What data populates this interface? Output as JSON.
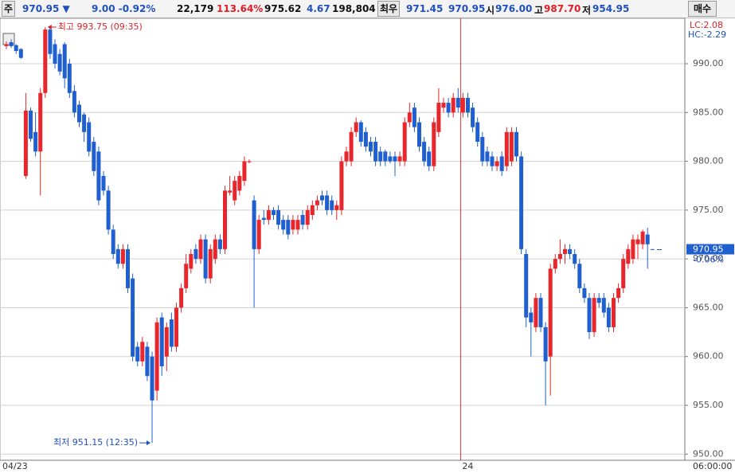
{
  "toolbar": {
    "code_tag": "주",
    "price": "970.95 ▼",
    "change": "9.00 -0.92%",
    "volume": "22,179",
    "volume_ratio": "113.64%",
    "ref_price": "975.62",
    "ref_change": "4.67",
    "amount": "198,804",
    "best_tag": "최우",
    "best_ask": "971.45",
    "best_bid": "970.95",
    "open_tag": "시",
    "open": "976.00",
    "high_tag": "고",
    "high": "987.70",
    "low_tag": "저",
    "low": "954.95",
    "buy_button": "매수"
  },
  "chart_data": {
    "type": "candlestick",
    "up_color": "#e8262b",
    "down_color": "#1f5fcf",
    "grid": true,
    "ylim": [
      949.5,
      994.7
    ],
    "yticks": [
      {
        "value": 950,
        "label": "950.00"
      },
      {
        "value": 955,
        "label": "955.00"
      },
      {
        "value": 960,
        "label": "960.00"
      },
      {
        "value": 965,
        "label": "965.00"
      },
      {
        "value": 970,
        "label": "970.00"
      },
      {
        "value": 975,
        "label": "975.00"
      },
      {
        "value": 980,
        "label": "980.00"
      },
      {
        "value": 985,
        "label": "985.00"
      },
      {
        "value": 990,
        "label": "990.00"
      }
    ],
    "categories": [
      "04/23",
      null,
      null,
      null,
      null,
      null,
      null,
      null,
      null,
      null,
      null,
      null,
      null,
      null,
      null,
      null,
      null,
      null,
      null,
      null,
      null,
      null,
      null,
      null,
      null,
      null,
      null,
      null,
      null,
      null,
      null,
      null,
      null,
      null,
      null,
      null,
      null,
      null,
      null,
      null,
      null,
      null,
      null,
      null,
      null,
      null,
      null,
      null,
      null,
      null,
      null,
      null,
      null,
      null,
      null,
      null,
      null,
      null,
      null,
      null,
      null,
      null,
      null,
      null,
      null,
      null,
      null,
      null,
      null,
      null,
      null,
      null,
      null,
      null,
      null,
      null,
      null,
      null,
      null,
      null,
      null,
      null,
      null,
      null,
      null,
      null,
      null,
      null,
      null,
      null,
      null,
      null,
      null,
      null,
      "24",
      null,
      null,
      null,
      null,
      null,
      null,
      null,
      null,
      null,
      null,
      null,
      null,
      null,
      null,
      null,
      null,
      null,
      null,
      null,
      null,
      null,
      null,
      null,
      null,
      null,
      null,
      null,
      null,
      null,
      null,
      null,
      null,
      null,
      null,
      null,
      null,
      null,
      null,
      null
    ],
    "x_end_label": "06:00:00",
    "ohlc": [
      [
        991.8,
        992.3,
        991.5,
        992.0
      ],
      [
        992.2,
        992.5,
        991.6,
        991.8
      ],
      [
        991.9,
        992.0,
        991.0,
        991.3
      ],
      [
        991.5,
        991.6,
        990.5,
        990.6
      ],
      [
        978.5,
        987.0,
        978.2,
        985.2
      ],
      [
        985.2,
        985.5,
        982.0,
        982.3
      ],
      [
        983.0,
        985.0,
        980.5,
        981.0
      ],
      [
        981.0,
        987.5,
        976.5,
        987.0
      ],
      [
        987.0,
        993.75,
        986.5,
        993.5
      ],
      [
        993.5,
        993.7,
        990.5,
        991.0
      ],
      [
        992.0,
        992.5,
        989.5,
        990.0
      ],
      [
        991.0,
        991.5,
        988.8,
        989.2
      ],
      [
        992.0,
        992.2,
        987.5,
        988.5
      ],
      [
        990.0,
        990.5,
        986.5,
        987.0
      ],
      [
        987.2,
        987.8,
        984.5,
        985.0
      ],
      [
        985.8,
        986.2,
        983.5,
        984.0
      ],
      [
        984.8,
        985.0,
        982.0,
        983.0
      ],
      [
        984.0,
        984.5,
        980.5,
        981.0
      ],
      [
        982.0,
        982.5,
        978.5,
        979.0
      ],
      [
        981.0,
        981.5,
        975.5,
        976.0
      ],
      [
        978.5,
        979.0,
        976.5,
        977.0
      ],
      [
        977.0,
        977.5,
        972.5,
        973.0
      ],
      [
        973.0,
        973.5,
        970.0,
        970.5
      ],
      [
        971.0,
        971.5,
        969.0,
        969.5
      ],
      [
        969.5,
        971.5,
        969.0,
        971.0
      ],
      [
        971.0,
        971.5,
        966.5,
        967.0
      ],
      [
        968.0,
        968.5,
        959.5,
        960.0
      ],
      [
        961.0,
        961.5,
        959.0,
        959.5
      ],
      [
        959.5,
        962.0,
        959.0,
        961.5
      ],
      [
        961.0,
        961.5,
        957.5,
        958.0
      ],
      [
        960.0,
        960.5,
        951.15,
        955.5
      ],
      [
        956.5,
        964.0,
        955.5,
        963.5
      ],
      [
        964.0,
        964.5,
        958.0,
        959.0
      ],
      [
        960.0,
        963.5,
        958.5,
        963.0
      ],
      [
        963.8,
        964.5,
        960.5,
        961.0
      ],
      [
        961.0,
        965.5,
        960.5,
        965.0
      ],
      [
        965.0,
        967.5,
        964.5,
        967.0
      ],
      [
        967.0,
        970.5,
        966.5,
        969.5
      ],
      [
        969.0,
        971.0,
        968.5,
        970.5
      ],
      [
        971.0,
        971.5,
        969.5,
        970.0
      ],
      [
        970.0,
        972.5,
        969.5,
        972.0
      ],
      [
        972.0,
        972.5,
        967.5,
        968.0
      ],
      [
        968.0,
        971.5,
        967.5,
        971.0
      ],
      [
        970.0,
        972.5,
        969.5,
        972.0
      ],
      [
        972.0,
        972.5,
        970.5,
        971.0
      ],
      [
        971.0,
        977.5,
        970.5,
        977.0
      ],
      [
        976.8,
        978.5,
        976.5,
        977.0
      ],
      [
        976.0,
        978.5,
        975.5,
        978.0
      ],
      [
        977.0,
        979.0,
        976.5,
        978.5
      ],
      [
        978.0,
        980.5,
        977.5,
        980.0
      ],
      [
        980.0,
        980.2,
        979.8,
        980.0
      ],
      [
        976.0,
        976.5,
        965.0,
        971.0
      ],
      [
        971.0,
        974.5,
        970.5,
        974.0
      ],
      [
        974.2,
        975.0,
        973.5,
        974.0
      ],
      [
        974.0,
        975.5,
        973.5,
        975.0
      ],
      [
        975.0,
        975.3,
        974.0,
        974.5
      ],
      [
        975.0,
        975.5,
        973.0,
        973.5
      ],
      [
        974.0,
        974.5,
        972.5,
        973.0
      ],
      [
        974.0,
        974.5,
        972.0,
        972.5
      ],
      [
        973.0,
        974.5,
        972.5,
        974.0
      ],
      [
        973.0,
        974.5,
        972.5,
        974.0
      ],
      [
        974.5,
        975.0,
        973.0,
        973.5
      ],
      [
        973.5,
        975.5,
        973.0,
        975.0
      ],
      [
        974.5,
        976.0,
        974.0,
        975.5
      ],
      [
        975.5,
        976.5,
        975.0,
        976.0
      ],
      [
        976.5,
        977.0,
        975.5,
        976.0
      ],
      [
        976.5,
        977.0,
        974.5,
        975.0
      ],
      [
        976.0,
        976.5,
        974.5,
        975.0
      ],
      [
        975.0,
        976.0,
        974.0,
        975.5
      ],
      [
        975.0,
        980.5,
        974.5,
        980.0
      ],
      [
        980.0,
        981.5,
        979.5,
        981.0
      ],
      [
        980.0,
        983.5,
        979.5,
        983.0
      ],
      [
        983.0,
        984.5,
        982.5,
        984.0
      ],
      [
        984.0,
        984.2,
        981.5,
        982.0
      ],
      [
        983.0,
        983.5,
        981.0,
        981.5
      ],
      [
        982.0,
        982.5,
        980.5,
        981.0
      ],
      [
        982.0,
        982.5,
        979.5,
        980.0
      ],
      [
        981.0,
        981.5,
        979.5,
        980.0
      ],
      [
        981.0,
        981.2,
        979.5,
        980.0
      ],
      [
        980.5,
        981.0,
        979.8,
        980.0
      ],
      [
        980.5,
        981.0,
        978.5,
        980.0
      ],
      [
        980.0,
        981.0,
        979.5,
        980.5
      ],
      [
        980.0,
        984.5,
        979.5,
        984.0
      ],
      [
        984.0,
        986.0,
        983.5,
        985.0
      ],
      [
        985.5,
        986.0,
        983.0,
        983.5
      ],
      [
        984.0,
        984.5,
        981.0,
        981.5
      ],
      [
        982.0,
        982.5,
        979.5,
        980.0
      ],
      [
        981.0,
        981.5,
        979.0,
        979.5
      ],
      [
        979.5,
        984.5,
        979.0,
        984.0
      ],
      [
        983.0,
        987.5,
        982.5,
        986.0
      ],
      [
        985.5,
        986.5,
        985.0,
        986.0
      ],
      [
        986.0,
        986.5,
        984.5,
        985.0
      ],
      [
        985.0,
        987.0,
        984.5,
        986.5
      ],
      [
        986.5,
        987.5,
        985.0,
        985.5
      ],
      [
        985.0,
        987.0,
        984.5,
        986.5
      ],
      [
        986.5,
        987.0,
        984.5,
        985.0
      ],
      [
        985.5,
        986.0,
        983.0,
        983.5
      ],
      [
        984.0,
        984.5,
        981.5,
        982.0
      ],
      [
        982.5,
        983.0,
        979.5,
        980.0
      ],
      [
        981.0,
        981.5,
        979.5,
        980.0
      ],
      [
        980.5,
        981.0,
        979.0,
        979.5
      ],
      [
        979.5,
        980.5,
        979.0,
        980.0
      ],
      [
        980.5,
        981.0,
        978.5,
        979.0
      ],
      [
        979.5,
        983.5,
        979.0,
        983.0
      ],
      [
        980.0,
        983.5,
        979.5,
        983.0
      ],
      [
        983.0,
        983.5,
        980.0,
        980.5
      ],
      [
        980.5,
        981.0,
        970.5,
        971.0
      ],
      [
        970.5,
        971.0,
        963.0,
        964.0
      ],
      [
        964.5,
        965.0,
        960.0,
        963.5
      ],
      [
        963.0,
        966.5,
        962.5,
        966.0
      ],
      [
        966.0,
        966.5,
        962.5,
        963.0
      ],
      [
        963.0,
        963.5,
        955.0,
        959.5
      ],
      [
        960.0,
        969.5,
        956.0,
        969.0
      ],
      [
        969.0,
        970.5,
        968.5,
        970.0
      ],
      [
        970.0,
        972.0,
        969.5,
        970.5
      ],
      [
        970.5,
        971.5,
        969.5,
        971.0
      ],
      [
        971.0,
        971.5,
        970.0,
        970.5
      ],
      [
        970.5,
        971.0,
        969.0,
        969.5
      ],
      [
        969.5,
        970.0,
        966.5,
        967.0
      ],
      [
        967.0,
        967.5,
        965.5,
        966.0
      ],
      [
        966.0,
        966.5,
        961.8,
        962.5
      ],
      [
        962.5,
        966.5,
        962.0,
        966.0
      ],
      [
        966.0,
        966.5,
        965.0,
        965.5
      ],
      [
        966.0,
        966.5,
        964.0,
        964.5
      ],
      [
        965.0,
        965.5,
        962.5,
        963.0
      ],
      [
        963.0,
        966.5,
        962.5,
        966.0
      ],
      [
        966.0,
        967.5,
        965.5,
        967.0
      ],
      [
        967.0,
        970.5,
        966.5,
        970.0
      ],
      [
        969.5,
        971.5,
        969.0,
        971.0
      ],
      [
        970.0,
        972.5,
        969.5,
        972.0
      ],
      [
        971.5,
        972.5,
        970.0,
        972.0
      ],
      [
        971.5,
        973.0,
        971.0,
        972.8
      ],
      [
        972.5,
        973.2,
        969.0,
        971.5
      ],
      [
        971.0,
        971.0,
        970.9,
        970.95
      ]
    ],
    "high_annotation": "최고 993.75 (09:35)",
    "high_index": 8,
    "high_value": 993.75,
    "low_annotation": "최저 951.15 (12:35)",
    "low_index": 30,
    "low_value": 951.15,
    "last_price": {
      "value": 970.95,
      "label": "970.95"
    },
    "last_change": "-0.06%",
    "lc_label": "LC:2.08",
    "hc_label": "HC:-2.29"
  }
}
